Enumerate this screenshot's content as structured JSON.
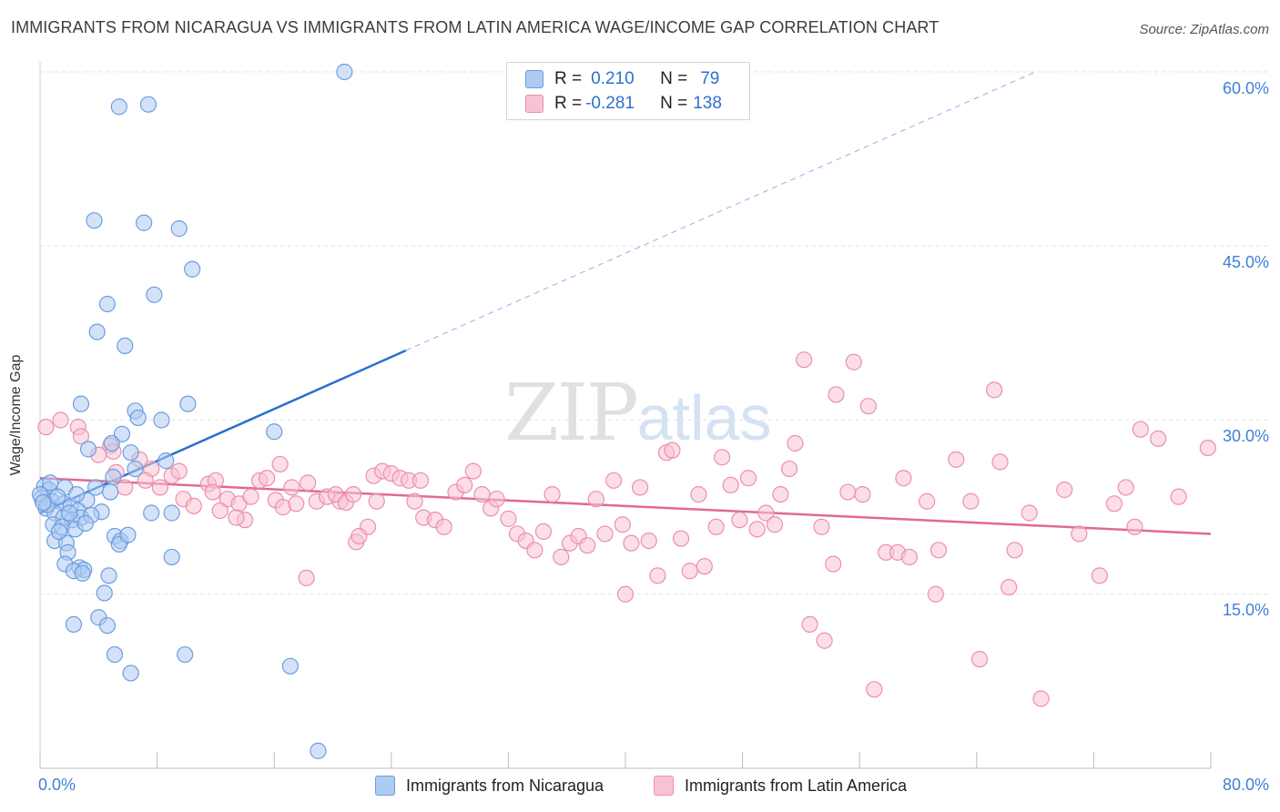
{
  "title": "IMMIGRANTS FROM NICARAGUA VS IMMIGRANTS FROM LATIN AMERICA WAGE/INCOME GAP CORRELATION CHART",
  "source": "Source: ZipAtlas.com",
  "watermark": {
    "zip": "ZIP",
    "atlas": "atlas"
  },
  "legend": {
    "rows": [
      {
        "r_label": "R =",
        "r_value": "0.210",
        "n_label": "N =",
        "n_value": "79"
      },
      {
        "r_label": "R =",
        "r_value": "-0.281",
        "n_label": "N =",
        "n_value": "138"
      }
    ]
  },
  "colors": {
    "blue_fill": "#aecbf2",
    "blue_stroke": "#6a9ee0",
    "blue_line": "#2a6fce",
    "pink_fill": "#f7c3d2",
    "pink_stroke": "#ec8fab",
    "pink_line": "#e06a93",
    "grid": "#e3e3e3",
    "tick_text": "#3f7fd6"
  },
  "chart_data": {
    "type": "scatter",
    "title": "IMMIGRANTS FROM NICARAGUA VS IMMIGRANTS FROM LATIN AMERICA WAGE/INCOME GAP CORRELATION CHART",
    "xlabel": "",
    "ylabel": "Wage/Income Gap",
    "xlim": [
      0,
      80
    ],
    "ylim": [
      0,
      60
    ],
    "x_tick_labels": [
      "0.0%",
      "80.0%"
    ],
    "y_ticks": [
      15,
      30,
      45,
      60
    ],
    "y_tick_labels": [
      "15.0%",
      "30.0%",
      "45.0%",
      "60.0%"
    ],
    "grid": true,
    "legend_position": "bottom",
    "series": [
      {
        "name": "Immigrants from Nicaragua",
        "r": 0.21,
        "n": 79,
        "trend": {
          "x0": 0.0,
          "y0": 22.0,
          "x1": 25.0,
          "y1": 36.0,
          "dashed_to": [
            68.0,
            60.0
          ]
        },
        "points": [
          [
            20.8,
            60.0
          ],
          [
            5.4,
            57.0
          ],
          [
            7.4,
            57.2
          ],
          [
            3.7,
            47.2
          ],
          [
            7.1,
            47.0
          ],
          [
            9.5,
            46.5
          ],
          [
            10.4,
            43.0
          ],
          [
            7.8,
            40.8
          ],
          [
            4.6,
            40.0
          ],
          [
            3.9,
            37.6
          ],
          [
            5.8,
            36.4
          ],
          [
            2.8,
            31.4
          ],
          [
            6.5,
            30.8
          ],
          [
            10.1,
            31.4
          ],
          [
            6.7,
            30.2
          ],
          [
            8.3,
            30.0
          ],
          [
            16.0,
            29.0
          ],
          [
            5.6,
            28.8
          ],
          [
            4.9,
            28.0
          ],
          [
            3.3,
            27.5
          ],
          [
            6.2,
            27.2
          ],
          [
            8.6,
            26.5
          ],
          [
            6.5,
            25.8
          ],
          [
            5.0,
            25.1
          ],
          [
            0.3,
            24.3
          ],
          [
            0.6,
            24.0
          ],
          [
            1.7,
            24.2
          ],
          [
            3.8,
            24.2
          ],
          [
            4.8,
            23.8
          ],
          [
            0.1,
            23.3
          ],
          [
            0.8,
            23.0
          ],
          [
            1.6,
            22.8
          ],
          [
            2.1,
            22.6
          ],
          [
            3.2,
            23.1
          ],
          [
            2.6,
            22.2
          ],
          [
            0.4,
            22.4
          ],
          [
            1.0,
            22.0
          ],
          [
            4.2,
            22.1
          ],
          [
            7.6,
            22.0
          ],
          [
            9.0,
            22.0
          ],
          [
            1.6,
            21.6
          ],
          [
            2.2,
            21.4
          ],
          [
            2.8,
            21.6
          ],
          [
            0.9,
            21.0
          ],
          [
            1.5,
            20.8
          ],
          [
            2.4,
            20.6
          ],
          [
            5.1,
            20.0
          ],
          [
            5.5,
            19.6
          ],
          [
            1.0,
            19.6
          ],
          [
            1.8,
            19.4
          ],
          [
            5.4,
            19.3
          ],
          [
            1.9,
            18.6
          ],
          [
            9.0,
            18.2
          ],
          [
            1.7,
            17.6
          ],
          [
            2.7,
            17.3
          ],
          [
            3.0,
            17.1
          ],
          [
            2.3,
            17.0
          ],
          [
            2.9,
            16.8
          ],
          [
            4.7,
            16.6
          ],
          [
            4.4,
            15.1
          ],
          [
            4.0,
            13.0
          ],
          [
            2.3,
            12.4
          ],
          [
            4.6,
            12.3
          ],
          [
            5.1,
            9.8
          ],
          [
            9.9,
            9.8
          ],
          [
            17.1,
            8.8
          ],
          [
            6.2,
            8.2
          ],
          [
            19.0,
            1.5
          ],
          [
            0.0,
            23.6
          ],
          [
            0.5,
            22.7
          ],
          [
            1.2,
            23.4
          ],
          [
            2.0,
            22.0
          ],
          [
            3.5,
            21.8
          ],
          [
            6.0,
            20.1
          ],
          [
            1.3,
            20.4
          ],
          [
            0.7,
            24.6
          ],
          [
            2.5,
            23.6
          ],
          [
            3.1,
            21.1
          ],
          [
            0.2,
            22.9
          ]
        ]
      },
      {
        "name": "Immigrants from Latin America",
        "r": -0.281,
        "n": 138,
        "trend": {
          "x0": 0.0,
          "y0": 25.0,
          "x1": 80.0,
          "y1": 20.2
        },
        "points": [
          [
            0.4,
            29.4
          ],
          [
            1.4,
            30.0
          ],
          [
            2.6,
            29.4
          ],
          [
            2.8,
            28.6
          ],
          [
            4.8,
            27.8
          ],
          [
            5.0,
            27.3
          ],
          [
            4.0,
            27.0
          ],
          [
            6.8,
            26.6
          ],
          [
            5.2,
            25.5
          ],
          [
            7.6,
            25.8
          ],
          [
            9.0,
            25.2
          ],
          [
            9.5,
            25.6
          ],
          [
            7.2,
            24.8
          ],
          [
            5.8,
            24.2
          ],
          [
            8.2,
            24.2
          ],
          [
            11.5,
            24.5
          ],
          [
            12.0,
            24.8
          ],
          [
            9.8,
            23.2
          ],
          [
            10.5,
            22.6
          ],
          [
            11.8,
            23.8
          ],
          [
            12.8,
            23.2
          ],
          [
            13.6,
            22.8
          ],
          [
            12.3,
            22.2
          ],
          [
            14.0,
            21.4
          ],
          [
            13.4,
            21.6
          ],
          [
            15.0,
            24.8
          ],
          [
            15.5,
            25.0
          ],
          [
            14.4,
            23.4
          ],
          [
            16.1,
            23.1
          ],
          [
            16.6,
            22.5
          ],
          [
            17.2,
            24.2
          ],
          [
            17.5,
            22.8
          ],
          [
            18.3,
            24.6
          ],
          [
            18.9,
            23.0
          ],
          [
            19.6,
            23.4
          ],
          [
            20.5,
            23.0
          ],
          [
            20.2,
            23.6
          ],
          [
            20.9,
            22.9
          ],
          [
            21.4,
            23.6
          ],
          [
            22.8,
            25.2
          ],
          [
            23.4,
            25.6
          ],
          [
            24.0,
            25.4
          ],
          [
            24.6,
            25.0
          ],
          [
            25.2,
            24.8
          ],
          [
            26.0,
            24.8
          ],
          [
            23.0,
            23.0
          ],
          [
            25.6,
            23.0
          ],
          [
            22.4,
            20.8
          ],
          [
            21.6,
            19.5
          ],
          [
            26.2,
            21.6
          ],
          [
            27.0,
            21.4
          ],
          [
            27.6,
            20.8
          ],
          [
            28.4,
            23.8
          ],
          [
            29.0,
            24.4
          ],
          [
            29.6,
            25.6
          ],
          [
            30.2,
            23.6
          ],
          [
            30.8,
            22.4
          ],
          [
            31.2,
            23.2
          ],
          [
            32.0,
            21.5
          ],
          [
            32.6,
            20.2
          ],
          [
            33.2,
            19.6
          ],
          [
            33.8,
            18.8
          ],
          [
            34.4,
            20.4
          ],
          [
            35.0,
            23.6
          ],
          [
            35.6,
            18.2
          ],
          [
            36.2,
            19.4
          ],
          [
            36.8,
            20.0
          ],
          [
            37.4,
            19.2
          ],
          [
            38.0,
            23.2
          ],
          [
            38.6,
            20.2
          ],
          [
            39.2,
            24.8
          ],
          [
            39.8,
            21.0
          ],
          [
            40.4,
            19.4
          ],
          [
            40.0,
            15.0
          ],
          [
            41.0,
            24.2
          ],
          [
            41.6,
            19.6
          ],
          [
            42.2,
            16.6
          ],
          [
            42.8,
            27.2
          ],
          [
            43.2,
            27.4
          ],
          [
            43.8,
            19.8
          ],
          [
            44.4,
            17.0
          ],
          [
            45.0,
            23.6
          ],
          [
            45.4,
            17.4
          ],
          [
            46.2,
            20.8
          ],
          [
            46.6,
            26.8
          ],
          [
            47.2,
            24.4
          ],
          [
            47.8,
            21.4
          ],
          [
            48.4,
            25.0
          ],
          [
            49.0,
            20.6
          ],
          [
            49.6,
            22.0
          ],
          [
            50.2,
            21.0
          ],
          [
            50.6,
            23.6
          ],
          [
            51.2,
            25.8
          ],
          [
            51.6,
            28.0
          ],
          [
            52.2,
            35.2
          ],
          [
            52.6,
            12.4
          ],
          [
            53.4,
            20.8
          ],
          [
            53.6,
            11.0
          ],
          [
            54.2,
            17.6
          ],
          [
            54.4,
            32.2
          ],
          [
            55.2,
            23.8
          ],
          [
            55.6,
            35.0
          ],
          [
            56.2,
            23.6
          ],
          [
            56.6,
            31.2
          ],
          [
            57.0,
            6.8
          ],
          [
            57.8,
            18.6
          ],
          [
            58.6,
            18.6
          ],
          [
            59.0,
            25.0
          ],
          [
            59.4,
            18.2
          ],
          [
            60.6,
            23.0
          ],
          [
            61.4,
            18.8
          ],
          [
            61.2,
            15.0
          ],
          [
            62.6,
            26.6
          ],
          [
            63.6,
            23.0
          ],
          [
            64.2,
            9.4
          ],
          [
            65.2,
            32.6
          ],
          [
            65.6,
            26.4
          ],
          [
            66.2,
            15.6
          ],
          [
            66.6,
            18.8
          ],
          [
            67.6,
            22.0
          ],
          [
            68.4,
            6.0
          ],
          [
            70.0,
            24.0
          ],
          [
            71.0,
            20.2
          ],
          [
            72.4,
            16.6
          ],
          [
            73.4,
            22.8
          ],
          [
            74.2,
            24.2
          ],
          [
            74.8,
            20.8
          ],
          [
            75.2,
            29.2
          ],
          [
            76.4,
            28.4
          ],
          [
            77.8,
            23.4
          ],
          [
            79.8,
            27.6
          ],
          [
            16.4,
            26.2
          ],
          [
            18.2,
            16.4
          ],
          [
            21.8,
            20.0
          ]
        ]
      }
    ]
  },
  "bottom_legend": [
    {
      "label": "Immigrants from Nicaragua"
    },
    {
      "label": "Immigrants from Latin America"
    }
  ]
}
